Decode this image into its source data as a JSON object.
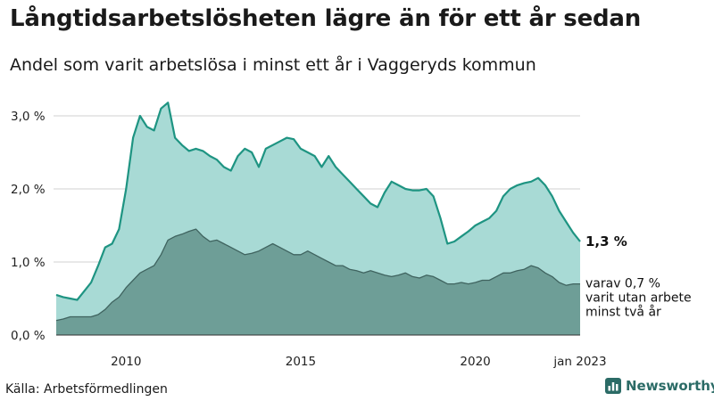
{
  "header": {
    "title": "Långtidsarbetslösheten lägre än för ett år sedan",
    "subtitle": "Andel som varit arbetslösa i minst ett år i Vaggeryds kommun"
  },
  "footer": {
    "source": "Källa: Arbetsförmedlingen",
    "brand": "Newsworthy"
  },
  "colors": {
    "area_total": "#a8dad5",
    "line_total": "#1e9482",
    "area_long": "#6e9e97",
    "line_long": "#3f635f",
    "grid": "#d0d0d0",
    "brand": "#2b6b66"
  },
  "chart_data": {
    "type": "area",
    "title": "Långtidsarbetslösheten lägre än för ett år sedan",
    "subtitle": "Andel som varit arbetslösa i minst ett år i Vaggeryds kommun",
    "x_range": [
      2008.0,
      2023.0
    ],
    "ylim": [
      0,
      3.0
    ],
    "y_ticks": [
      0,
      1.0,
      2.0,
      3.0
    ],
    "y_tick_labels": [
      "0,0 %",
      "1,0 %",
      "2,0 %",
      "3,0 %"
    ],
    "x_ticks": [
      2010,
      2015,
      2020,
      2023
    ],
    "x_tick_labels": [
      "2010",
      "2015",
      "2020",
      "jan 2023"
    ],
    "grid": true,
    "series": [
      {
        "name": "Andel arbetslösa minst ett år",
        "points": [
          [
            2008.0,
            0.55
          ],
          [
            2008.2,
            0.52
          ],
          [
            2008.4,
            0.5
          ],
          [
            2008.6,
            0.48
          ],
          [
            2008.8,
            0.6
          ],
          [
            2009.0,
            0.72
          ],
          [
            2009.2,
            0.95
          ],
          [
            2009.4,
            1.2
          ],
          [
            2009.6,
            1.25
          ],
          [
            2009.8,
            1.45
          ],
          [
            2010.0,
            2.0
          ],
          [
            2010.2,
            2.7
          ],
          [
            2010.4,
            3.0
          ],
          [
            2010.6,
            2.85
          ],
          [
            2010.8,
            2.8
          ],
          [
            2011.0,
            3.1
          ],
          [
            2011.2,
            3.18
          ],
          [
            2011.4,
            2.7
          ],
          [
            2011.6,
            2.6
          ],
          [
            2011.8,
            2.52
          ],
          [
            2012.0,
            2.55
          ],
          [
            2012.2,
            2.52
          ],
          [
            2012.4,
            2.45
          ],
          [
            2012.6,
            2.4
          ],
          [
            2012.8,
            2.3
          ],
          [
            2013.0,
            2.25
          ],
          [
            2013.2,
            2.45
          ],
          [
            2013.4,
            2.55
          ],
          [
            2013.6,
            2.5
          ],
          [
            2013.8,
            2.3
          ],
          [
            2014.0,
            2.55
          ],
          [
            2014.2,
            2.6
          ],
          [
            2014.4,
            2.65
          ],
          [
            2014.6,
            2.7
          ],
          [
            2014.8,
            2.68
          ],
          [
            2015.0,
            2.55
          ],
          [
            2015.2,
            2.5
          ],
          [
            2015.4,
            2.45
          ],
          [
            2015.6,
            2.3
          ],
          [
            2015.8,
            2.45
          ],
          [
            2016.0,
            2.3
          ],
          [
            2016.2,
            2.2
          ],
          [
            2016.4,
            2.1
          ],
          [
            2016.6,
            2.0
          ],
          [
            2016.8,
            1.9
          ],
          [
            2017.0,
            1.8
          ],
          [
            2017.2,
            1.75
          ],
          [
            2017.4,
            1.95
          ],
          [
            2017.6,
            2.1
          ],
          [
            2017.8,
            2.05
          ],
          [
            2018.0,
            2.0
          ],
          [
            2018.2,
            1.98
          ],
          [
            2018.4,
            1.98
          ],
          [
            2018.6,
            2.0
          ],
          [
            2018.8,
            1.9
          ],
          [
            2019.0,
            1.6
          ],
          [
            2019.2,
            1.25
          ],
          [
            2019.4,
            1.28
          ],
          [
            2019.6,
            1.35
          ],
          [
            2019.8,
            1.42
          ],
          [
            2020.0,
            1.5
          ],
          [
            2020.2,
            1.55
          ],
          [
            2020.4,
            1.6
          ],
          [
            2020.6,
            1.7
          ],
          [
            2020.8,
            1.9
          ],
          [
            2021.0,
            2.0
          ],
          [
            2021.2,
            2.05
          ],
          [
            2021.4,
            2.08
          ],
          [
            2021.6,
            2.1
          ],
          [
            2021.8,
            2.15
          ],
          [
            2022.0,
            2.05
          ],
          [
            2022.2,
            1.9
          ],
          [
            2022.4,
            1.7
          ],
          [
            2022.6,
            1.55
          ],
          [
            2022.8,
            1.4
          ],
          [
            2023.0,
            1.28
          ]
        ]
      },
      {
        "name": "varav arbetslösa minst två år",
        "points": [
          [
            2008.0,
            0.2
          ],
          [
            2008.2,
            0.22
          ],
          [
            2008.4,
            0.25
          ],
          [
            2008.6,
            0.25
          ],
          [
            2008.8,
            0.25
          ],
          [
            2009.0,
            0.25
          ],
          [
            2009.2,
            0.28
          ],
          [
            2009.4,
            0.35
          ],
          [
            2009.6,
            0.45
          ],
          [
            2009.8,
            0.52
          ],
          [
            2010.0,
            0.65
          ],
          [
            2010.2,
            0.75
          ],
          [
            2010.4,
            0.85
          ],
          [
            2010.6,
            0.9
          ],
          [
            2010.8,
            0.95
          ],
          [
            2011.0,
            1.1
          ],
          [
            2011.2,
            1.3
          ],
          [
            2011.4,
            1.35
          ],
          [
            2011.6,
            1.38
          ],
          [
            2011.8,
            1.42
          ],
          [
            2012.0,
            1.45
          ],
          [
            2012.2,
            1.35
          ],
          [
            2012.4,
            1.28
          ],
          [
            2012.6,
            1.3
          ],
          [
            2012.8,
            1.25
          ],
          [
            2013.0,
            1.2
          ],
          [
            2013.2,
            1.15
          ],
          [
            2013.4,
            1.1
          ],
          [
            2013.6,
            1.12
          ],
          [
            2013.8,
            1.15
          ],
          [
            2014.0,
            1.2
          ],
          [
            2014.2,
            1.25
          ],
          [
            2014.4,
            1.2
          ],
          [
            2014.6,
            1.15
          ],
          [
            2014.8,
            1.1
          ],
          [
            2015.0,
            1.1
          ],
          [
            2015.2,
            1.15
          ],
          [
            2015.4,
            1.1
          ],
          [
            2015.6,
            1.05
          ],
          [
            2015.8,
            1.0
          ],
          [
            2016.0,
            0.95
          ],
          [
            2016.2,
            0.95
          ],
          [
            2016.4,
            0.9
          ],
          [
            2016.6,
            0.88
          ],
          [
            2016.8,
            0.85
          ],
          [
            2017.0,
            0.88
          ],
          [
            2017.2,
            0.85
          ],
          [
            2017.4,
            0.82
          ],
          [
            2017.6,
            0.8
          ],
          [
            2017.8,
            0.82
          ],
          [
            2018.0,
            0.85
          ],
          [
            2018.2,
            0.8
          ],
          [
            2018.4,
            0.78
          ],
          [
            2018.6,
            0.82
          ],
          [
            2018.8,
            0.8
          ],
          [
            2019.0,
            0.75
          ],
          [
            2019.2,
            0.7
          ],
          [
            2019.4,
            0.7
          ],
          [
            2019.6,
            0.72
          ],
          [
            2019.8,
            0.7
          ],
          [
            2020.0,
            0.72
          ],
          [
            2020.2,
            0.75
          ],
          [
            2020.4,
            0.75
          ],
          [
            2020.6,
            0.8
          ],
          [
            2020.8,
            0.85
          ],
          [
            2021.0,
            0.85
          ],
          [
            2021.2,
            0.88
          ],
          [
            2021.4,
            0.9
          ],
          [
            2021.6,
            0.95
          ],
          [
            2021.8,
            0.92
          ],
          [
            2022.0,
            0.85
          ],
          [
            2022.2,
            0.8
          ],
          [
            2022.4,
            0.72
          ],
          [
            2022.6,
            0.68
          ],
          [
            2022.8,
            0.7
          ],
          [
            2023.0,
            0.7
          ]
        ]
      }
    ],
    "annotations": {
      "total_label": "1,3 %",
      "long_lines": [
        "varav 0,7 %",
        "varit utan arbete",
        "minst två år"
      ]
    }
  }
}
